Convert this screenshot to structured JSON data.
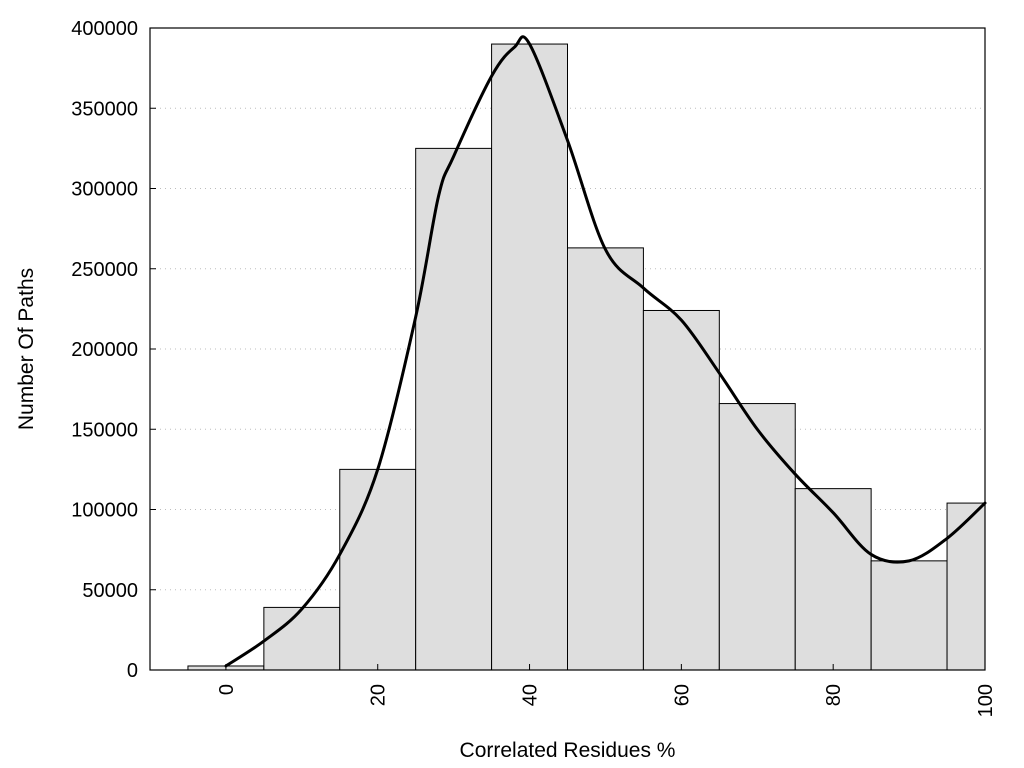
{
  "chart_data": {
    "type": "bar",
    "xlabel": "Correlated Residues %",
    "ylabel": "Number Of Paths",
    "xlim": [
      -10,
      100
    ],
    "ylim": [
      0,
      400000
    ],
    "x_ticks": [
      0,
      20,
      40,
      60,
      80,
      100
    ],
    "y_ticks": [
      0,
      50000,
      100000,
      150000,
      200000,
      250000,
      300000,
      350000,
      400000
    ],
    "grid": true,
    "bin_width": 10,
    "bar_color": "#dedede",
    "series": [
      {
        "type": "bar",
        "x": [
          0,
          10,
          20,
          30,
          40,
          50,
          60,
          70,
          80,
          90,
          100
        ],
        "values": [
          2500,
          39000,
          125000,
          325000,
          390000,
          263000,
          224000,
          166000,
          113000,
          68000,
          104000
        ]
      },
      {
        "type": "line",
        "color": "#000000",
        "x": [
          0,
          5,
          10,
          15,
          20,
          25,
          28,
          30,
          35,
          38,
          40,
          45,
          50,
          55,
          60,
          65,
          70,
          75,
          80,
          85,
          90,
          95,
          100
        ],
        "values": [
          2500,
          18000,
          38000,
          72000,
          125000,
          220000,
          295000,
          320000,
          370000,
          388000,
          390000,
          330000,
          262000,
          238000,
          218000,
          185000,
          150000,
          122000,
          98000,
          72000,
          68000,
          82000,
          104000
        ]
      }
    ]
  }
}
